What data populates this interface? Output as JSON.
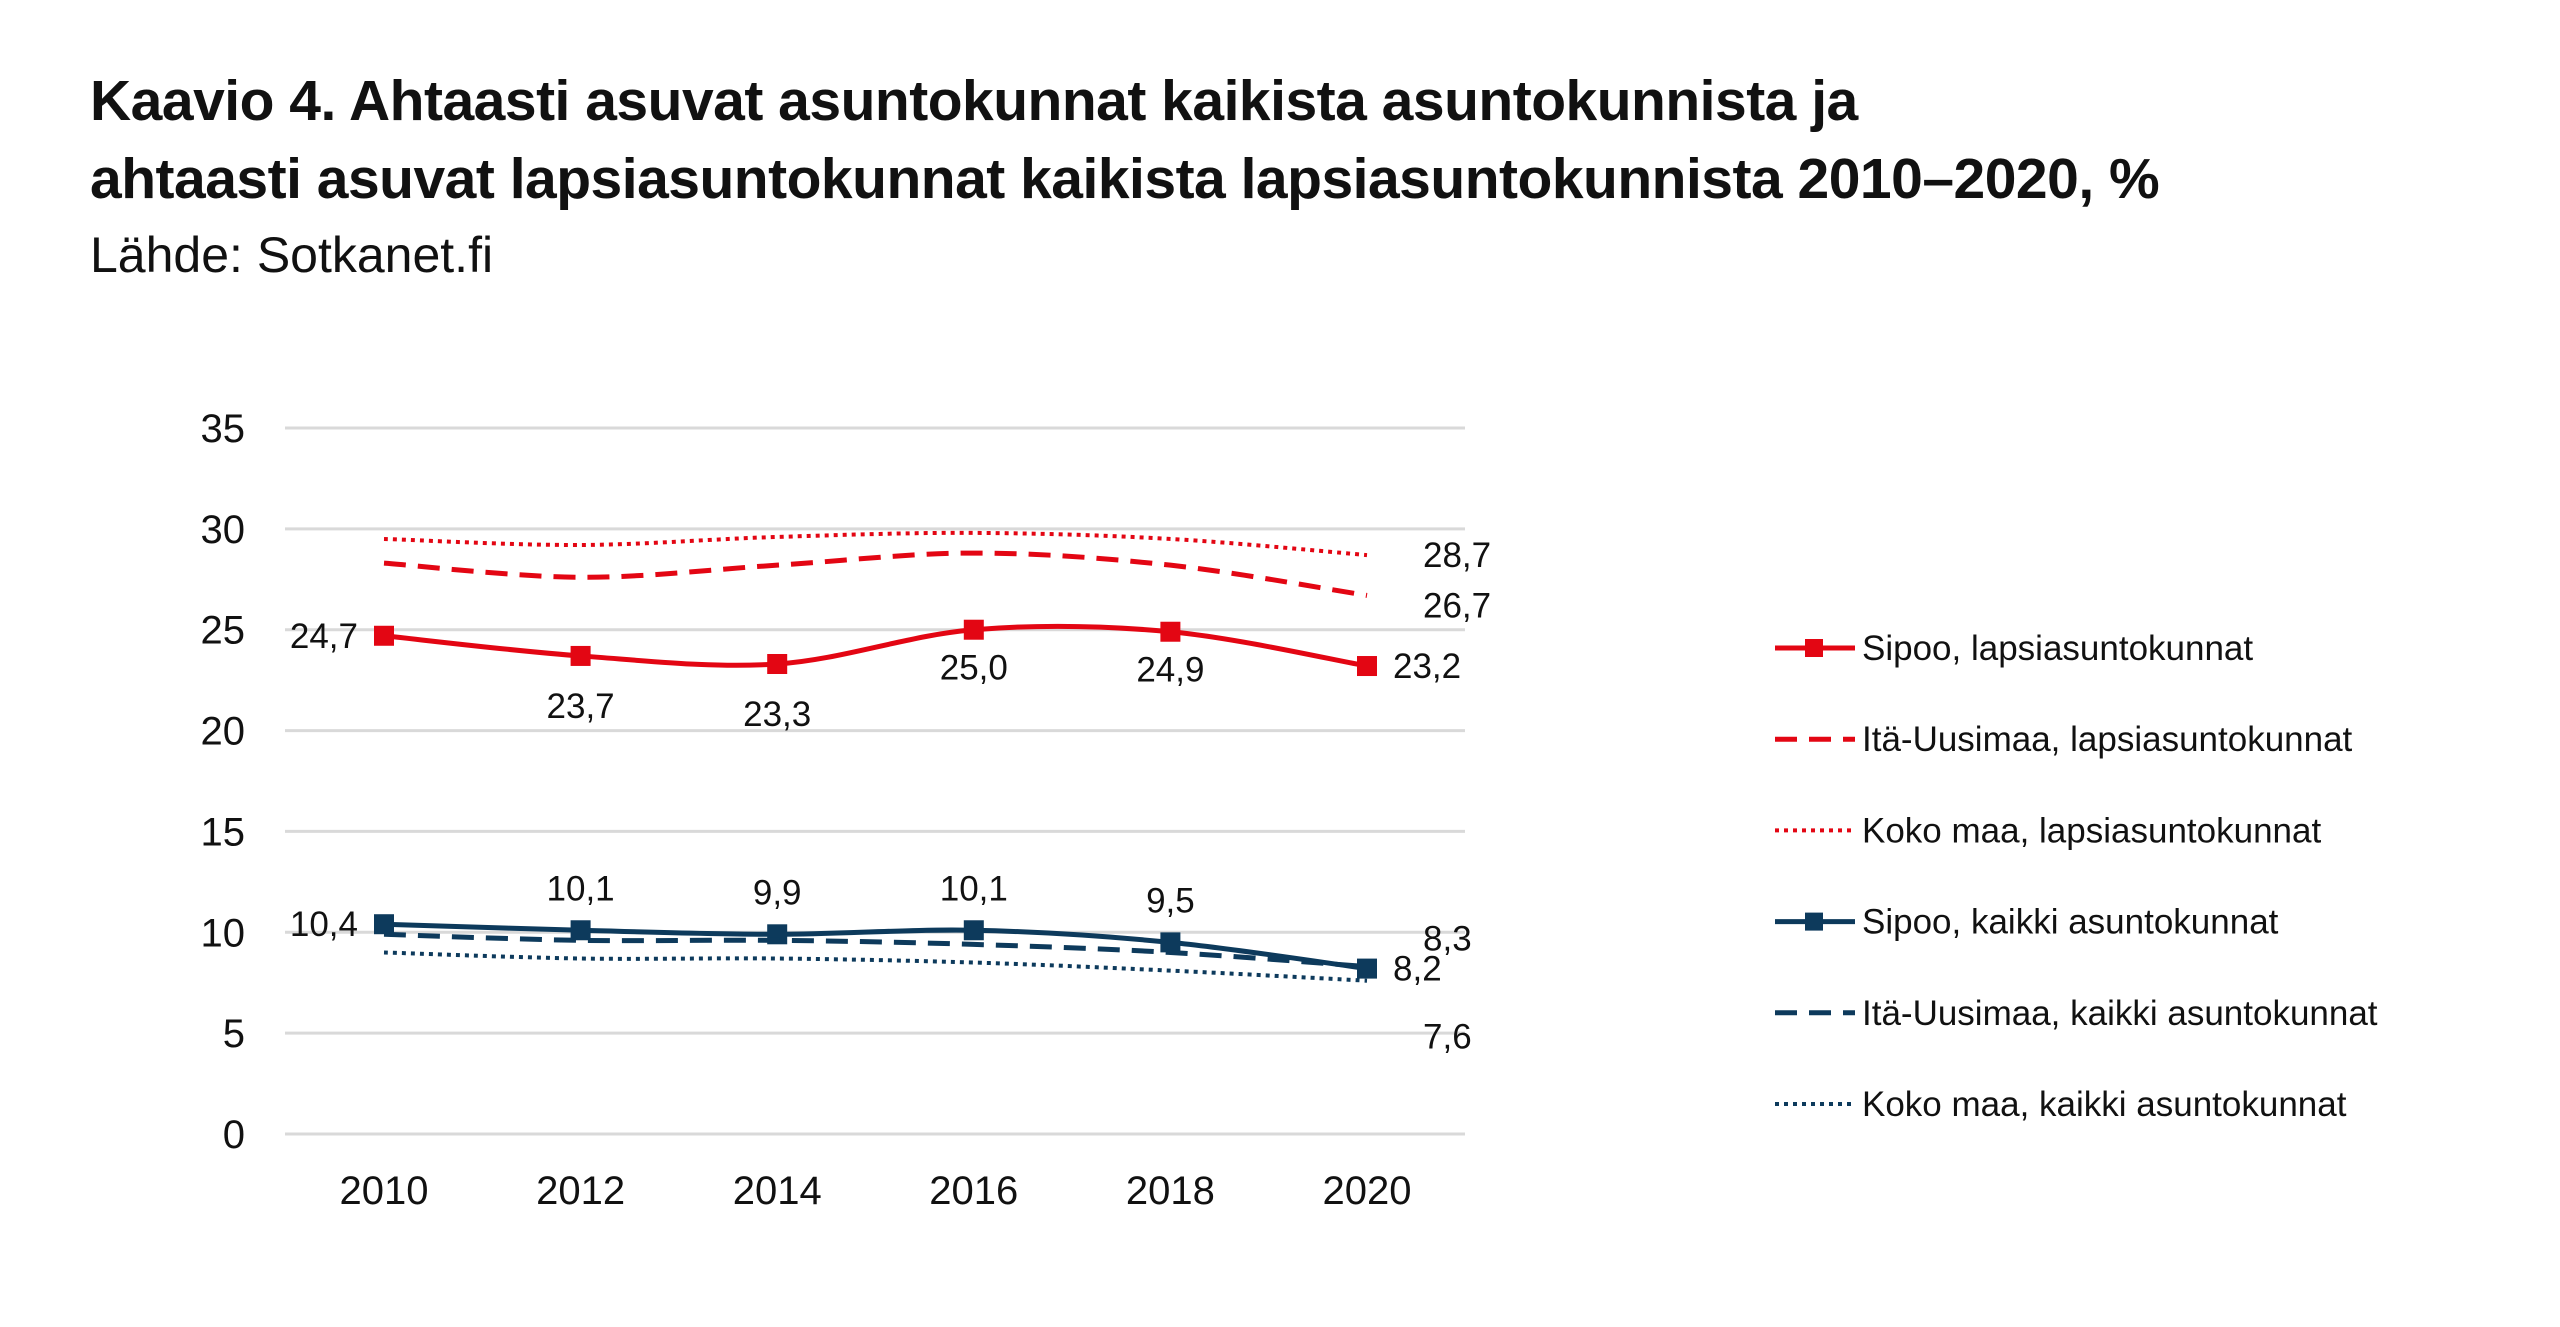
{
  "title_line1": "Kaavio 4. Ahtaasti asuvat asuntokunnat kaikista asuntokunnista ja",
  "title_line2": "ahtaasti asuvat lapsiasuntokunnat kaikista lapsiasuntokunnista 2010–2020, %",
  "source": "Lähde: Sotkanet.fi",
  "chart_data": {
    "type": "line",
    "title": "Kaavio 4. Ahtaasti asuvat asuntokunnat kaikista asuntokunnista ja ahtaasti asuvat lapsiasuntokunnat kaikista lapsiasuntokunnista 2010–2020, %",
    "x": [
      "2010",
      "2012",
      "2014",
      "2016",
      "2018",
      "2020"
    ],
    "ylim": [
      0,
      35
    ],
    "yticks": [
      "0",
      "5",
      "10",
      "15",
      "20",
      "25",
      "30",
      "35"
    ],
    "grid": true,
    "legend_placement": "right",
    "series": [
      {
        "name": "Sipoo, lapsiasuntokunnat",
        "values": [
          24.7,
          23.7,
          23.3,
          25.0,
          24.9,
          23.2
        ],
        "labels": [
          "24,7",
          "23,7",
          "23,3",
          "25,0",
          "24,9",
          "23,2"
        ],
        "color": "#e30613",
        "style": "solid",
        "marker": "square"
      },
      {
        "name": "Itä-Uusimaa, lapsiasuntokunnat",
        "values": [
          28.3,
          27.6,
          28.2,
          28.8,
          28.2,
          26.7
        ],
        "labels": [
          "",
          "",
          "",
          "",
          "",
          "26,7"
        ],
        "color": "#e30613",
        "style": "dashed"
      },
      {
        "name": "Koko maa, lapsiasuntokunnat",
        "values": [
          29.5,
          29.2,
          29.6,
          29.8,
          29.5,
          28.7
        ],
        "labels": [
          "",
          "",
          "",
          "",
          "",
          "28,7"
        ],
        "color": "#e30613",
        "style": "dotted"
      },
      {
        "name": "Sipoo, kaikki asuntokunnat",
        "values": [
          10.4,
          10.1,
          9.9,
          10.1,
          9.5,
          8.2
        ],
        "labels": [
          "10,4",
          "10,1",
          "9,9",
          "10,1",
          "9,5",
          "8,2"
        ],
        "color": "#0d3a5c",
        "style": "solid",
        "marker": "square"
      },
      {
        "name": "Itä-Uusimaa, kaikki asuntokunnat",
        "values": [
          9.9,
          9.6,
          9.6,
          9.4,
          9.0,
          8.3
        ],
        "labels": [
          "",
          "",
          "",
          "",
          "",
          "8,3"
        ],
        "color": "#0d3a5c",
        "style": "dashed"
      },
      {
        "name": "Koko maa, kaikki asuntokunnat",
        "values": [
          9.0,
          8.7,
          8.7,
          8.5,
          8.1,
          7.6
        ],
        "labels": [
          "",
          "",
          "",
          "",
          "",
          "7,6"
        ],
        "color": "#0d3a5c",
        "style": "dotted"
      }
    ]
  }
}
